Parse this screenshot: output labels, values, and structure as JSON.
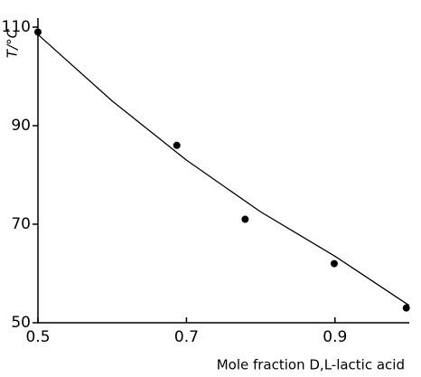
{
  "chart_data": {
    "type": "scatter",
    "x_label": "Mole fraction D,L-lactic acid",
    "y_label": "T/°C",
    "x": [
      0.5,
      0.687,
      0.779,
      0.899,
      0.996
    ],
    "values": [
      109,
      86,
      71,
      62,
      53
    ],
    "color": "#000000",
    "curve": {
      "x": [
        0.5,
        0.6,
        0.7,
        0.8,
        0.9,
        1.0
      ],
      "values": [
        108.5,
        95,
        83,
        72.5,
        63.5,
        53.5
      ]
    },
    "xlim": [
      0.5,
      1.0
    ],
    "xticks": [
      0.5,
      0.7,
      0.9
    ],
    "ylim": [
      50,
      110
    ],
    "yticks": [
      50,
      70,
      90,
      110
    ]
  }
}
